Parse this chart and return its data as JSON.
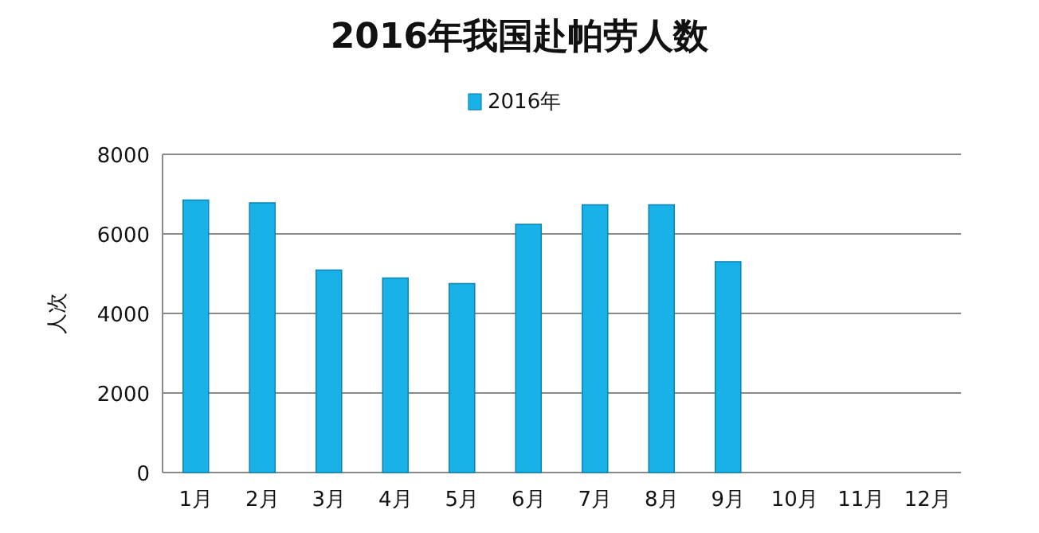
{
  "chart_data": {
    "type": "bar",
    "title": "2016年我国赴帕劳人数",
    "ylabel": "人次",
    "categories": [
      "1月",
      "2月",
      "3月",
      "4月",
      "5月",
      "6月",
      "7月",
      "8月",
      "9月",
      "10月",
      "11月",
      "12月"
    ],
    "series": [
      {
        "name": "2016年",
        "color": "#19b2e8",
        "values": [
          6850,
          6780,
          5090,
          4890,
          4750,
          6240,
          6730,
          6730,
          5300,
          null,
          null,
          null
        ]
      }
    ],
    "ylim": [
      0,
      8000
    ],
    "yticks": [
      0,
      2000,
      4000,
      6000,
      8000
    ],
    "grid": "y",
    "legend": "top"
  }
}
